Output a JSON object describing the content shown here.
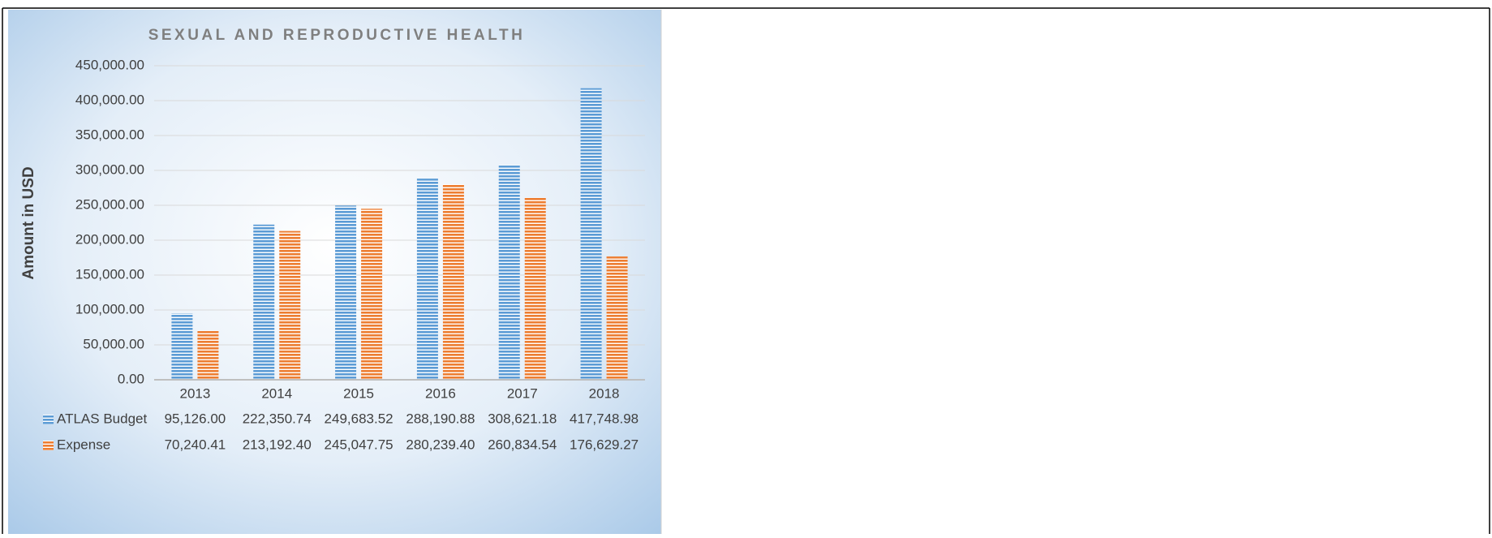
{
  "chart_data": {
    "type": "bar",
    "title": "SEXUAL AND REPRODUCTIVE HEALTH",
    "y_label": "Amount in USD",
    "categories": [
      "2013",
      "2014",
      "2015",
      "2016",
      "2017",
      "2018"
    ],
    "series": [
      {
        "name": "ATLAS Budget",
        "color": "#5b9bd5",
        "values": [
          95126.0,
          222350.74,
          249683.52,
          288190.88,
          308621.18,
          417748.98
        ],
        "value_labels": [
          "95,126.00",
          "222,350.74",
          "249,683.52",
          "288,190.88",
          "308,621.18",
          "417,748.98"
        ]
      },
      {
        "name": "Expense",
        "color": "#ed7d31",
        "values": [
          70240.41,
          213192.4,
          245047.75,
          280239.4,
          260834.54,
          176629.27
        ],
        "value_labels": [
          "70,240.41",
          "213,192.40",
          "245,047.75",
          "280,239.40",
          "260,834.54",
          "176,629.27"
        ]
      }
    ],
    "ylim": [
      0,
      450000
    ],
    "yticks": [
      {
        "value": 0,
        "label": "0.00"
      },
      {
        "value": 50000,
        "label": "50,000.00"
      },
      {
        "value": 100000,
        "label": "100,000.00"
      },
      {
        "value": 150000,
        "label": "150,000.00"
      },
      {
        "value": 200000,
        "label": "200,000.00"
      },
      {
        "value": 250000,
        "label": "250,000.00"
      },
      {
        "value": 300000,
        "label": "300,000.00"
      },
      {
        "value": 350000,
        "label": "350,000.00"
      },
      {
        "value": 400000,
        "label": "400,000.00"
      },
      {
        "value": 450000,
        "label": "450,000.00"
      }
    ],
    "grid": true,
    "legend": "data-table"
  }
}
